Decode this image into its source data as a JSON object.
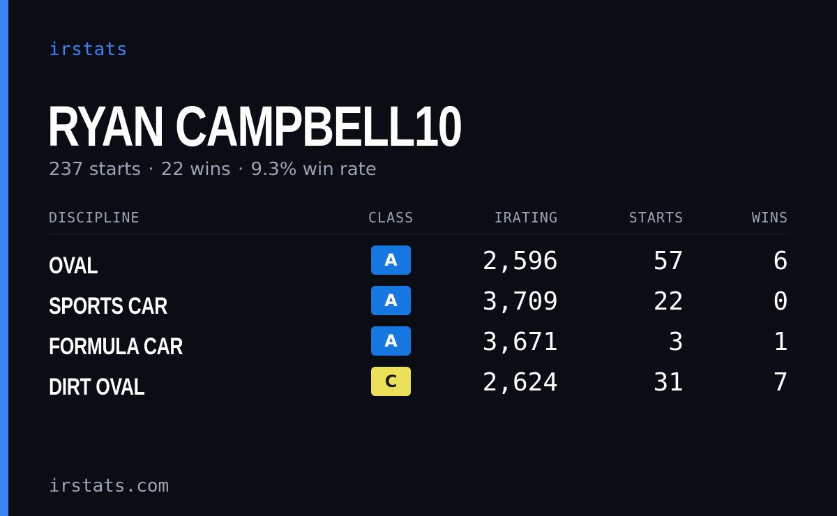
{
  "brand": "irstats",
  "driver": {
    "name": "RYAN CAMPBELL10",
    "starts_text": "237 starts",
    "wins_text": "22 wins",
    "winrate_text": "9.3% win rate",
    "separator": "·"
  },
  "table": {
    "headers": {
      "discipline": "DISCIPLINE",
      "class": "CLASS",
      "irating": "IRATING",
      "starts": "STARTS",
      "wins": "WINS"
    },
    "rows": [
      {
        "discipline": "OVAL",
        "class": "A",
        "irating": "2,596",
        "starts": "57",
        "wins": "6"
      },
      {
        "discipline": "SPORTS CAR",
        "class": "A",
        "irating": "3,709",
        "starts": "22",
        "wins": "0"
      },
      {
        "discipline": "FORMULA CAR",
        "class": "A",
        "irating": "3,671",
        "starts": "3",
        "wins": "1"
      },
      {
        "discipline": "DIRT OVAL",
        "class": "C",
        "irating": "2,624",
        "starts": "31",
        "wins": "7"
      }
    ]
  },
  "footer": "irstats.com",
  "colors": {
    "background": "#0a0d14",
    "accent": "#3b82f6",
    "class_A": "#1677e0",
    "class_C": "#ece05a",
    "muted_text": "#9aa3b2"
  }
}
